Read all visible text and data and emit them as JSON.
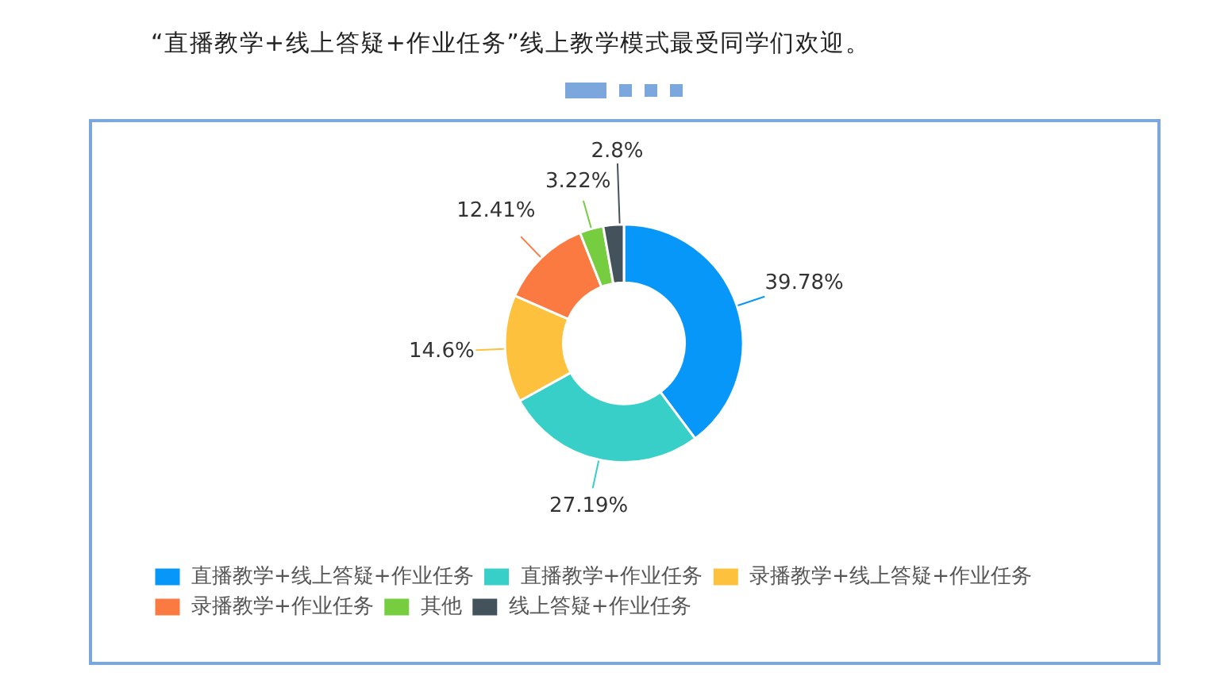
{
  "chart_data": {
    "type": "donut",
    "title": "“直播教学+线上答疑+作业任务”线上教学模式最受同学们欢迎。",
    "categories": [
      "直播教学+线上答疑+作业任务",
      "直播教学+作业任务",
      "录播教学+线上答疑+作业任务",
      "录播教学+作业任务",
      "其他",
      "线上答疑+作业任务"
    ],
    "values": [
      39.78,
      27.19,
      14.6,
      12.41,
      3.22,
      2.8
    ],
    "colors": [
      "#0797f8",
      "#37cfc8",
      "#fec13d",
      "#fb7a42",
      "#76cd3f",
      "#44525c"
    ],
    "value_labels": [
      "39.78%",
      "27.19%",
      "14.6%",
      "12.41%",
      "3.22%",
      "2.8%"
    ],
    "legend": "bottom"
  }
}
